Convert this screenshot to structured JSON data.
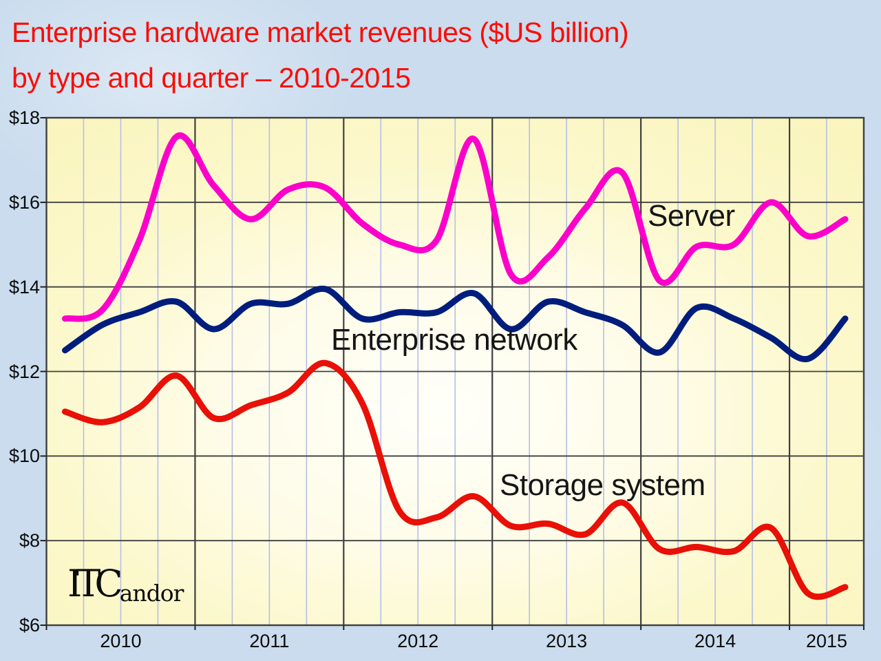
{
  "title": {
    "line1": "Enterprise hardware market revenues ($US billion)",
    "line2": "by type and quarter – 2010-2015"
  },
  "logo": {
    "main": "ITC",
    "sub": "andor"
  },
  "chart_data": {
    "type": "line",
    "title": "Enterprise hardware market revenues ($US billion) by type and quarter 2010-2015",
    "x_years": [
      "2010",
      "2011",
      "2012",
      "2013",
      "2014",
      "2015"
    ],
    "quarters": [
      "2010 Q1",
      "2010 Q2",
      "2010 Q3",
      "2010 Q4",
      "2011 Q1",
      "2011 Q2",
      "2011 Q3",
      "2011 Q4",
      "2012 Q1",
      "2012 Q2",
      "2012 Q3",
      "2012 Q4",
      "2013 Q1",
      "2013 Q2",
      "2013 Q3",
      "2013 Q4",
      "2014 Q1",
      "2014 Q2",
      "2014 Q3",
      "2014 Q4",
      "2015 Q1",
      "2015 Q2"
    ],
    "ylim": [
      6,
      18
    ],
    "y_ticks": [
      {
        "label": "$18",
        "value": 18
      },
      {
        "label": "$16",
        "value": 16
      },
      {
        "label": "$14",
        "value": 14
      },
      {
        "label": "$12",
        "value": 12
      },
      {
        "label": "$10",
        "value": 10
      },
      {
        "label": "$8",
        "value": 8
      },
      {
        "label": "$6",
        "value": 6
      }
    ],
    "grid": {
      "horizontal_color": "#3f3f3f",
      "quarter_line_color": "#b6bee6",
      "year_line_color": "#3f3f3f"
    },
    "series": [
      {
        "name": "Server",
        "color": "#fb00cb",
        "values": [
          13.25,
          13.45,
          15.1,
          17.55,
          16.4,
          15.6,
          16.3,
          16.35,
          15.5,
          15.0,
          15.1,
          17.5,
          14.3,
          14.7,
          15.85,
          16.7,
          14.15,
          14.95,
          15.0,
          16.0,
          15.2,
          15.6
        ]
      },
      {
        "name": "Enterprise network",
        "color": "#001d7d",
        "values": [
          12.5,
          13.1,
          13.4,
          13.65,
          13.0,
          13.6,
          13.6,
          13.95,
          13.25,
          13.4,
          13.4,
          13.85,
          13.0,
          13.65,
          13.4,
          13.1,
          12.45,
          13.5,
          13.25,
          12.8,
          12.3,
          13.25
        ]
      },
      {
        "name": "Storage system",
        "color": "#e81007",
        "values": [
          11.05,
          10.8,
          11.15,
          11.9,
          10.9,
          11.2,
          11.5,
          12.2,
          11.25,
          8.7,
          8.55,
          9.05,
          8.35,
          8.4,
          8.15,
          8.9,
          7.8,
          7.85,
          7.75,
          8.3,
          6.75,
          6.9
        ]
      }
    ]
  }
}
